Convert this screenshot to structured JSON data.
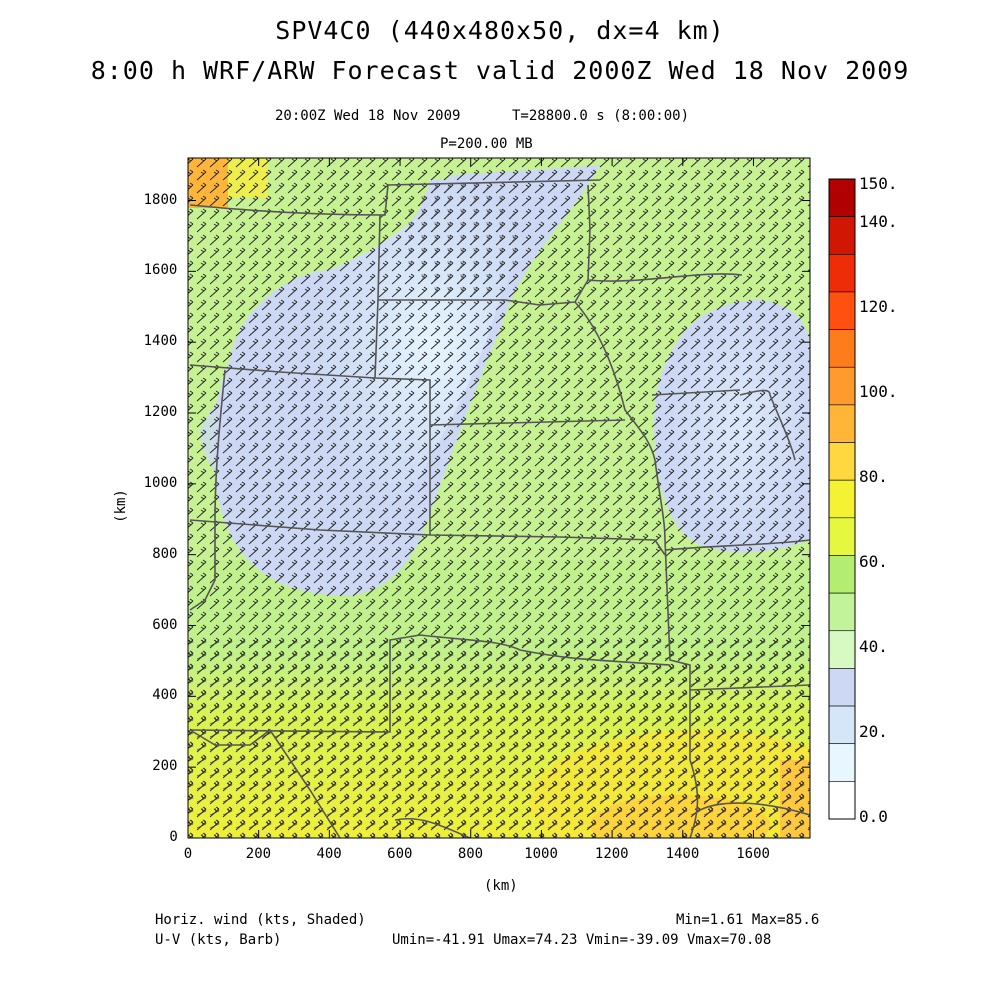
{
  "title_line1": "SPV4C0 (440x480x50, dx=4 km)",
  "title_line2": "8:00 h WRF/ARW Forecast valid 2000Z Wed 18 Nov 2009",
  "valid_time": "20:00Z Wed 18 Nov 2009",
  "model_time": "T=28800.0 s (8:00:00)",
  "level": "P=200.00 MB",
  "map": {
    "x_label": "(km)",
    "y_label": "(km)",
    "x_ticks": [
      "0",
      "200",
      "400",
      "600",
      "800",
      "1000",
      "1200",
      "1400",
      "1600"
    ],
    "y_ticks": [
      "0",
      "200",
      "400",
      "600",
      "800",
      "1000",
      "1200",
      "1400",
      "1600",
      "1800"
    ],
    "x_range": [
      0,
      1760
    ],
    "y_range": [
      0,
      1920
    ]
  },
  "colorbar": {
    "labels": [
      "150.",
      "140.",
      "120.",
      "100.",
      "80.",
      "60.",
      "40.",
      "20.",
      "0.0"
    ],
    "colors": [
      "#FFFFFF",
      "#E8F6FF",
      "#D5E6F8",
      "#CCD8F4",
      "#D6FAC2",
      "#C2F39A",
      "#B4EE70",
      "#E5F73E",
      "#F5F234",
      "#FFD840",
      "#FFB638",
      "#FF9A2E",
      "#FF7C1C",
      "#FF5010",
      "#EE2C08",
      "#D21604",
      "#B00002"
    ]
  },
  "footer": {
    "field1": "Horiz. wind (kts, Shaded)",
    "field2": "U-V (kts, Barb)",
    "minmax": "Min=1.61 Max=85.6",
    "components": "Umin=-41.91 Umax=74.23 Vmin=-39.09 Vmax=70.08"
  },
  "chart_data": {
    "type": "heatmap",
    "variable": "Horiz. wind (kts, Shaded)",
    "overlay": "U-V (kts, Barb)",
    "x_axis": "(km)",
    "y_axis": "(km)",
    "x_range_km": [
      0,
      1760
    ],
    "y_range_km": [
      0,
      1920
    ],
    "colorbar_range": [
      0,
      150
    ],
    "min": 1.61,
    "max": 85.6,
    "umin": -41.91,
    "umax": 74.23,
    "vmin": -39.09,
    "vmax": 70.08
  }
}
